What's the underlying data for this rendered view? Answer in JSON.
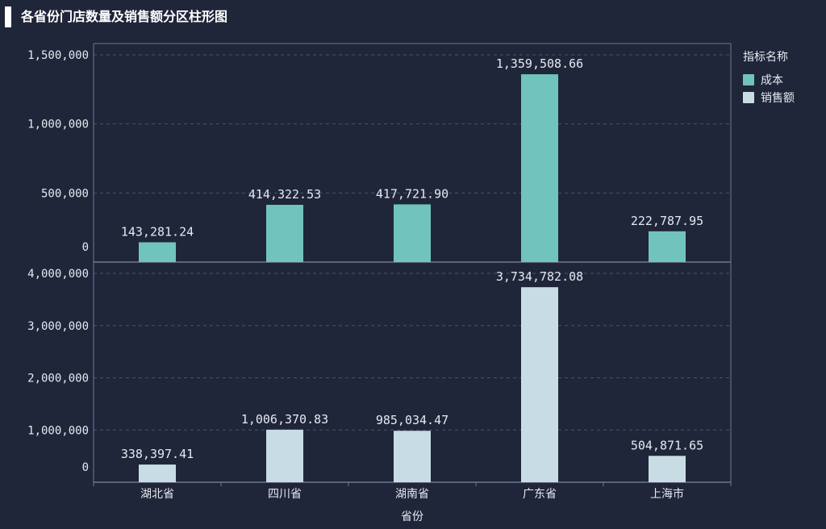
{
  "title": "各省份门店数量及销售额分区柱形图",
  "legend": {
    "title": "指标名称"
  },
  "chart_data": {
    "type": "bar",
    "xlabel": "省份",
    "categories": [
      "湖北省",
      "四川省",
      "湖南省",
      "广东省",
      "上海市"
    ],
    "series": [
      {
        "name": "成本",
        "color": "#71c3bd",
        "values": [
          143281.24,
          414322.53,
          417721.9,
          1359508.66,
          222787.95
        ],
        "value_labels": [
          "143,281.24",
          "414,322.53",
          "417,721.90",
          "1,359,508.66",
          "222,787.95"
        ],
        "ylim": [
          0,
          1500000
        ],
        "yticks": [
          0,
          500000,
          1000000,
          1500000
        ],
        "ytick_labels": [
          "0",
          "500,000",
          "1,000,000",
          "1,500,000"
        ]
      },
      {
        "name": "销售额",
        "color": "#c8dde3",
        "values": [
          338397.41,
          1006370.83,
          985034.47,
          3734782.08,
          504871.65
        ],
        "value_labels": [
          "338,397.41",
          "1,006,370.83",
          "985,034.47",
          "3,734,782.08",
          "504,871.65"
        ],
        "ylim": [
          0,
          4000000
        ],
        "yticks": [
          0,
          1000000,
          2000000,
          3000000,
          4000000
        ],
        "ytick_labels": [
          "0",
          "1,000,000",
          "2,000,000",
          "3,000,000",
          "4,000,000"
        ]
      }
    ],
    "grid": true,
    "legend_position": "top-right"
  }
}
